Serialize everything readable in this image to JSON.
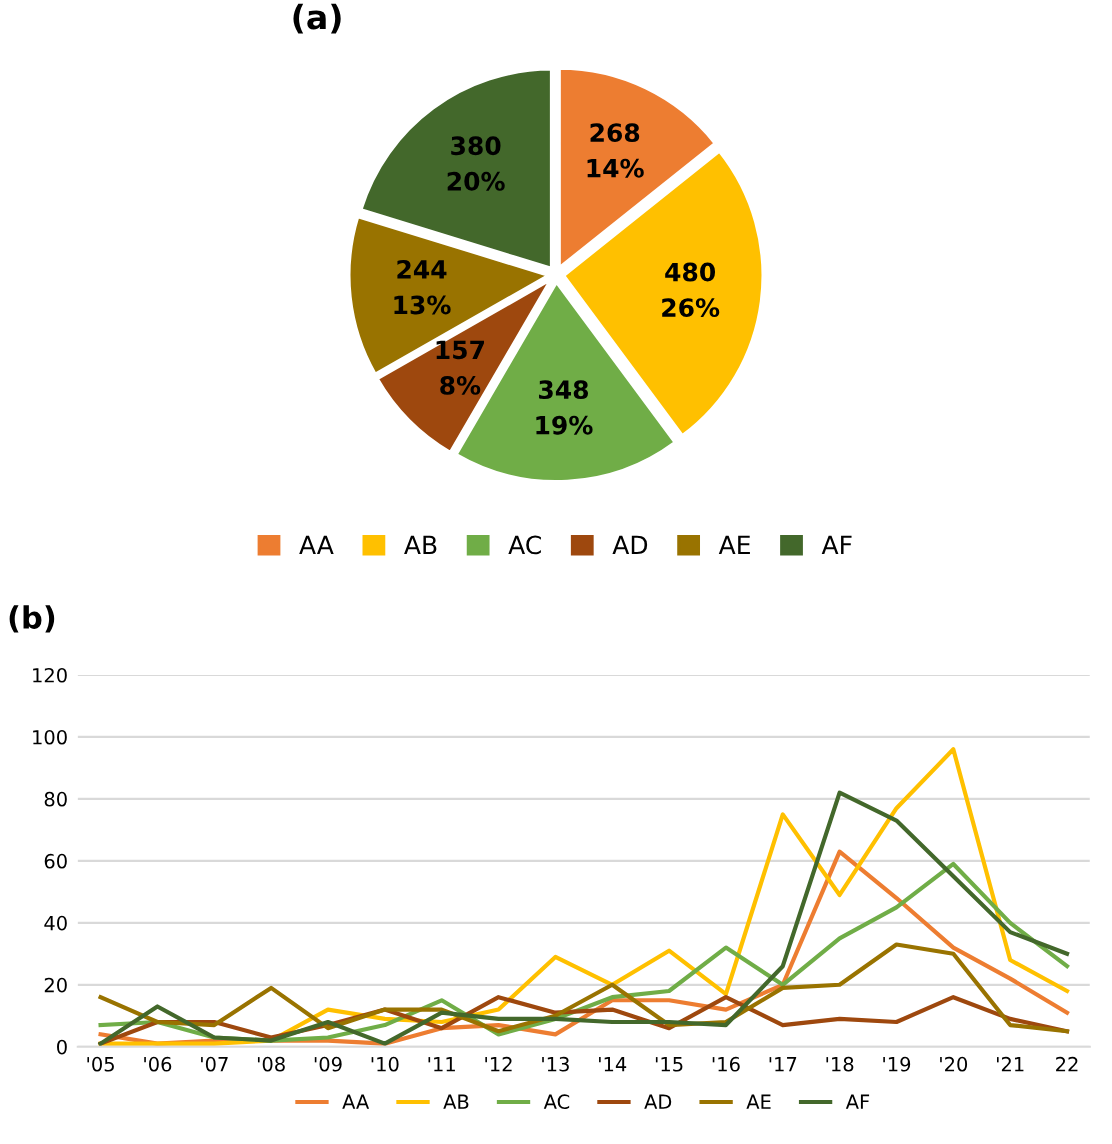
{
  "chart_data": [
    {
      "type": "pie",
      "title": "(a)",
      "categories": [
        "AA",
        "AB",
        "AC",
        "AD",
        "AE",
        "AF"
      ],
      "values": [
        268,
        480,
        348,
        157,
        244,
        380
      ],
      "colors": [
        "#ed7d31",
        "#ffc000",
        "#70ad47",
        "#9e480e",
        "#997300",
        "#43682b"
      ],
      "value_labels": [
        "268\n14%",
        "480\n26%",
        "348\n19%",
        "157\n8%",
        "244\n13%",
        "380\n20%"
      ],
      "legend": "bottom"
    },
    {
      "type": "line",
      "title": "(b)",
      "categories": [
        "'05",
        "'06",
        "'07",
        "'08",
        "'09",
        "'10",
        "'11",
        "'12",
        "'13",
        "'14",
        "'15",
        "'16",
        "'17",
        "'18",
        "'19",
        "'20",
        "'21",
        "22"
      ],
      "series": [
        {
          "name": "AA",
          "color": "#ed7d31",
          "values": [
            4,
            1,
            2,
            2,
            2,
            1,
            6,
            7,
            4,
            15,
            15,
            12,
            20,
            63,
            48,
            32,
            22,
            11
          ]
        },
        {
          "name": "AB",
          "color": "#ffc000",
          "values": [
            1,
            1,
            1,
            2,
            12,
            9,
            8,
            12,
            29,
            20,
            31,
            17,
            75,
            49,
            77,
            96,
            28,
            18
          ]
        },
        {
          "name": "AC",
          "color": "#70ad47",
          "values": [
            7,
            8,
            3,
            2,
            3,
            7,
            15,
            4,
            9,
            16,
            18,
            32,
            20,
            35,
            45,
            59,
            40,
            26
          ]
        },
        {
          "name": "AD",
          "color": "#9e480e",
          "values": [
            1,
            8,
            8,
            3,
            7,
            12,
            6,
            16,
            11,
            12,
            6,
            16,
            7,
            9,
            8,
            16,
            9,
            5
          ]
        },
        {
          "name": "AE",
          "color": "#997300",
          "values": [
            16,
            8,
            7,
            19,
            6,
            12,
            12,
            5,
            10,
            20,
            7,
            8,
            19,
            20,
            33,
            30,
            7,
            5
          ]
        },
        {
          "name": "AF",
          "color": "#43682b",
          "values": [
            1,
            13,
            3,
            2,
            8,
            1,
            11,
            9,
            9,
            8,
            8,
            7,
            26,
            82,
            73,
            55,
            37,
            30
          ]
        }
      ],
      "ylim": [
        0,
        120
      ],
      "yticks": [
        0,
        20,
        40,
        60,
        80,
        100,
        120
      ],
      "grid": "y",
      "legend": "bottom"
    }
  ]
}
